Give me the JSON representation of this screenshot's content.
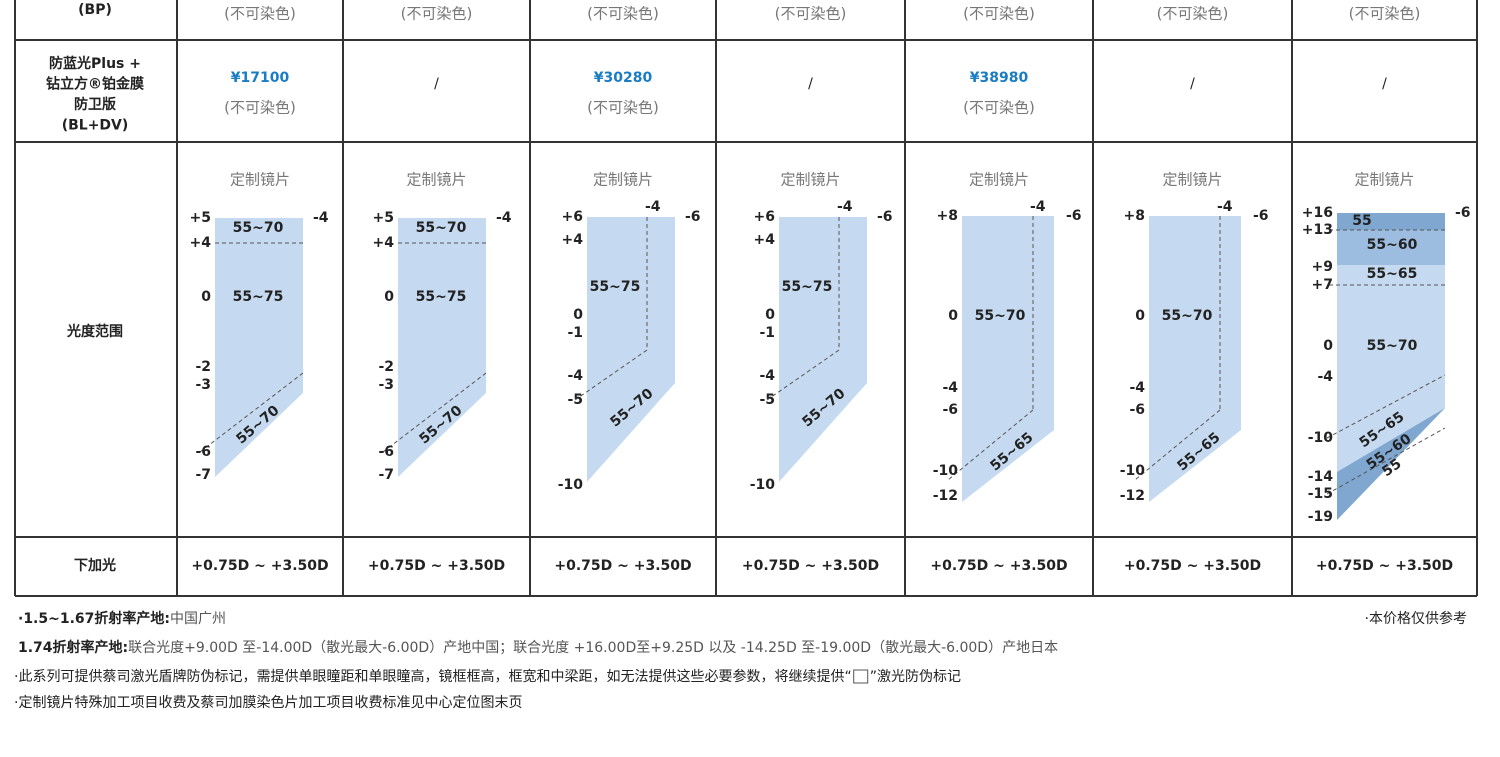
{
  "table": {
    "rows": [
      {
        "label": "(BP)",
        "cells": [
          "(不可染色)",
          "(不可染色)",
          "(不可染色)",
          "(不可染色)",
          "(不可染色)",
          "(不可染色)",
          "(不可染色)"
        ]
      },
      {
        "label": [
          "防蓝光Plus +",
          "钻立方®铂金膜",
          "防卫版",
          "(BL+DV)"
        ],
        "cells": [
          {
            "price": "¥17100",
            "note": "(不可染色)"
          },
          "/",
          {
            "price": "¥30280",
            "note": "(不可染色)"
          },
          "/",
          {
            "price": "¥38980",
            "note": "(不可染色)"
          },
          "/",
          "/"
        ]
      },
      {
        "label": "光度范围",
        "cells": [
          {
            "title": "定制镜片",
            "left_labels": [
              "+5",
              "+4",
              "0",
              "-2",
              "-3",
              "-6",
              "-7"
            ],
            "right_labels": [
              "-4"
            ],
            "zone_labels": [
              "55~70",
              "55~75",
              "55~70"
            ]
          },
          {
            "title": "定制镜片",
            "left_labels": [
              "+5",
              "+4",
              "0",
              "-2",
              "-3",
              "-6",
              "-7"
            ],
            "right_labels": [
              "-4"
            ],
            "zone_labels": [
              "55~70",
              "55~75",
              "55~70"
            ]
          },
          {
            "title": "定制镜片",
            "left_labels": [
              "+6",
              "+4",
              "0",
              "-1",
              "-4",
              "-5",
              "-10"
            ],
            "right_labels": [
              "-4",
              "-6"
            ],
            "zone_labels": [
              "55~75",
              "55~70"
            ]
          },
          {
            "title": "定制镜片",
            "left_labels": [
              "+6",
              "+4",
              "0",
              "-1",
              "-4",
              "-5",
              "-10"
            ],
            "right_labels": [
              "-4",
              "-6"
            ],
            "zone_labels": [
              "55~75",
              "55~70"
            ]
          },
          {
            "title": "定制镜片",
            "left_labels": [
              "+8",
              "0",
              "-4",
              "-6",
              "-10",
              "-12"
            ],
            "right_labels": [
              "-4",
              "-6"
            ],
            "zone_labels": [
              "55~70",
              "55~65"
            ]
          },
          {
            "title": "定制镜片",
            "left_labels": [
              "+8",
              "0",
              "-4",
              "-6",
              "-10",
              "-12"
            ],
            "right_labels": [
              "-4",
              "-6"
            ],
            "zone_labels": [
              "55~70",
              "55~65"
            ]
          },
          {
            "title": "定制镜片",
            "left_labels": [
              "+16",
              "+13",
              "+9",
              "+7",
              "0",
              "-4",
              "-10",
              "-14",
              "-15",
              "-19"
            ],
            "right_labels": [
              "-6"
            ],
            "zone_labels": [
              "55",
              "55~60",
              "55~65",
              "55~70",
              "55~65",
              "55~60",
              "55"
            ]
          }
        ]
      },
      {
        "label": "下加光",
        "cells": [
          "+0.75D ~ +3.50D",
          "+0.75D ~ +3.50D",
          "+0.75D ~ +3.50D",
          "+0.75D ~ +3.50D",
          "+0.75D ~ +3.50D",
          "+0.75D ~ +3.50D",
          "+0.75D ~ +3.50D"
        ]
      }
    ]
  },
  "notes": {
    "origin_1": {
      "label": "·1.5~1.67折射率产地:",
      "text": "中国广州"
    },
    "price_note": "·本价格仅供参考",
    "origin_2": {
      "label": "1.74折射率产地:",
      "text": "联合光度+9.00D 至-14.00D（散光最大-6.00D）产地中国；联合光度 +16.00D至+9.25D 以及 -14.25D 至-19.00D（散光最大-6.00D）产地日本"
    },
    "laser": [
      "·此系列可提供蔡司激光盾牌防伪标记，需提供单眼瞳距和单眼瞳高，镜框框高，框宽和中梁距，如无法提供这些必要参数，将继续提供“",
      "”激光防伪标记"
    ],
    "custom": "·定制镜片特殊加工项目收费及蔡司加膜染色片加工项目收费标准见中心定位图末页"
  }
}
